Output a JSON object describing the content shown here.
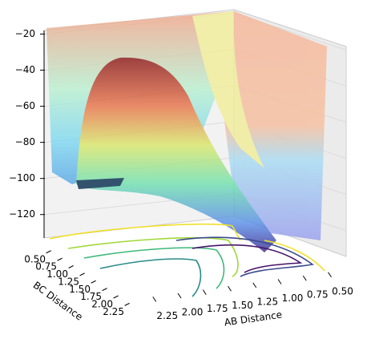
{
  "chart_data": {
    "type": "surface",
    "xlabel": "AB Distance",
    "ylabel": "BC Distance",
    "xlim": [
      2.4,
      0.4
    ],
    "xticks": [
      {
        "value": 2.25,
        "label": "2.25"
      },
      {
        "value": 2.0,
        "label": "2.00"
      },
      {
        "value": 1.75,
        "label": "1.75"
      },
      {
        "value": 1.5,
        "label": "1.50"
      },
      {
        "value": 1.25,
        "label": "1.25"
      },
      {
        "value": 1.0,
        "label": "1.00"
      },
      {
        "value": 0.75,
        "label": "0.75"
      },
      {
        "value": 0.5,
        "label": "0.50"
      }
    ],
    "ylim": [
      0.4,
      2.4
    ],
    "yticks": [
      {
        "value": 0.5,
        "label": "0.50"
      },
      {
        "value": 0.75,
        "label": "0.75"
      },
      {
        "value": 1.0,
        "label": "1.00"
      },
      {
        "value": 1.25,
        "label": "1.25"
      },
      {
        "value": 1.5,
        "label": "1.50"
      },
      {
        "value": 1.75,
        "label": "1.75"
      },
      {
        "value": 2.0,
        "label": "2.00"
      },
      {
        "value": 2.25,
        "label": "2.25"
      }
    ],
    "zlim": [
      -133,
      -18
    ],
    "zticks": [
      {
        "value": -20,
        "label": "−20"
      },
      {
        "value": -40,
        "label": "−40"
      },
      {
        "value": -60,
        "label": "−60"
      },
      {
        "value": -80,
        "label": "−80"
      },
      {
        "value": -100,
        "label": "−100"
      },
      {
        "value": -120,
        "label": "−120"
      }
    ],
    "grid": true
  }
}
